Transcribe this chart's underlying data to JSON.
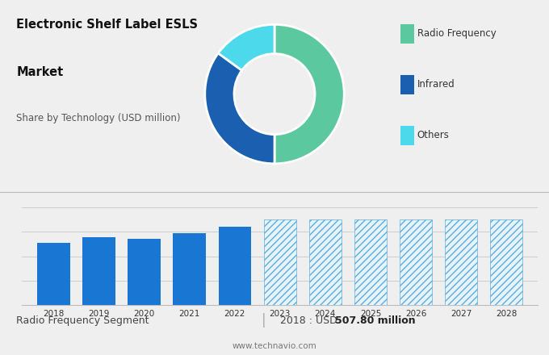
{
  "title_line1": "Electronic Shelf Label ESLS",
  "title_line2": "Market",
  "subtitle": "Share by Technology (USD million)",
  "bg_color_top": "#d8d8d8",
  "bg_color_bottom": "#efefef",
  "pie_colors": [
    "#5cc8a0",
    "#1a5fb0",
    "#4dd9ec"
  ],
  "pie_labels": [
    "Radio Frequency",
    "Infrared",
    "Others"
  ],
  "pie_sizes": [
    50,
    35,
    15
  ],
  "bar_years_solid": [
    2018,
    2019,
    2020,
    2021,
    2022
  ],
  "bar_values_solid": [
    508,
    560,
    545,
    590,
    640
  ],
  "bar_years_hatch": [
    2023,
    2024,
    2025,
    2026,
    2027,
    2028
  ],
  "bar_values_hatch": [
    700,
    700,
    700,
    700,
    700,
    700
  ],
  "bar_color_solid": "#1976d2",
  "bar_color_hatch_face": "#e8f4fb",
  "bar_edge_color_hatch": "#5aade0",
  "hatch_pattern": "////",
  "footer_left": "Radio Frequency Segment",
  "footer_sep": "|",
  "footer_right_normal": "2018 : USD ",
  "footer_right_bold": "507.80 million",
  "footer_website": "www.technavio.com",
  "ylim": [
    0,
    900
  ],
  "legend_square_size": 0.025,
  "legend_colors": [
    "#5cc8a0",
    "#1a5fb0",
    "#4dd9ec"
  ],
  "legend_labels": [
    "Radio Frequency",
    "Infrared",
    "Others"
  ]
}
